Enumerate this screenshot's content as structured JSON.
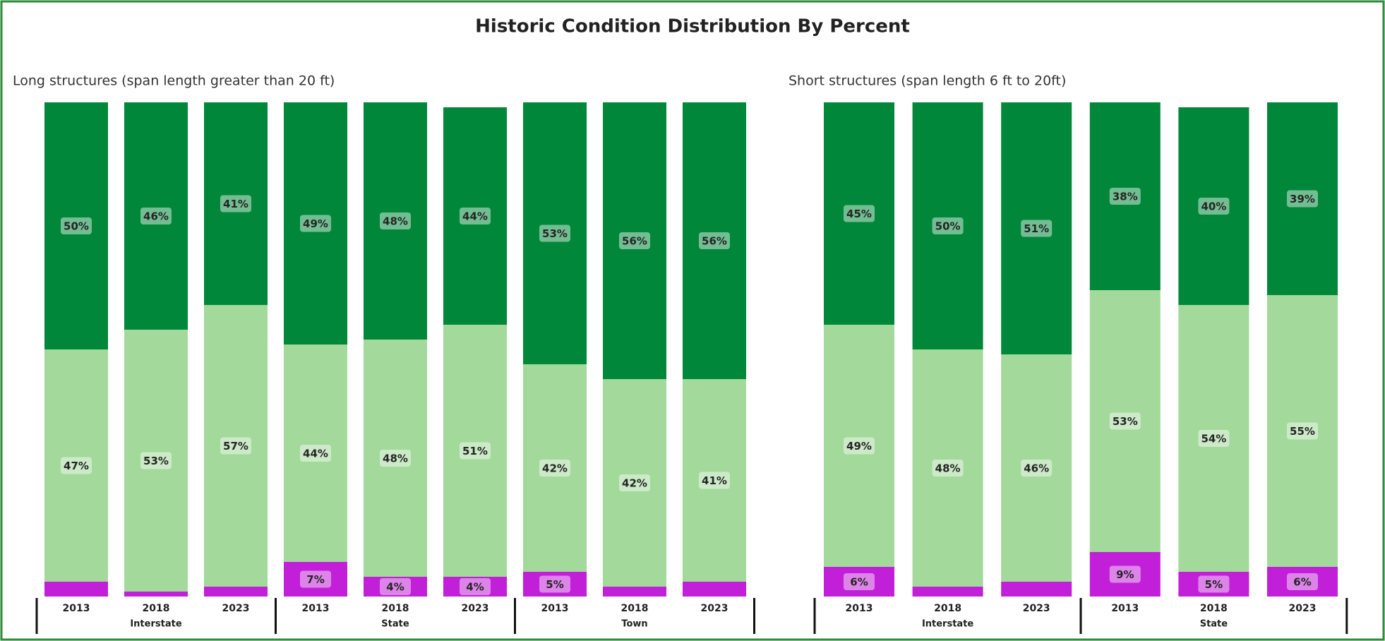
{
  "title": "Historic Condition Distribution By Percent",
  "chart_data": [
    {
      "type": "stacked_bar",
      "subtitle": "Long structures (span length greater than 20 ft)",
      "categories": [
        "2013",
        "2018",
        "2023",
        "2013",
        "2018",
        "2023",
        "2013",
        "2018",
        "2023"
      ],
      "group_labels": [
        "Interstate",
        "State",
        "Town"
      ],
      "ylim": [
        0,
        100
      ],
      "series": [
        {
          "color": "#c21fd8",
          "values": [
            3,
            1,
            2,
            7,
            4,
            4,
            5,
            2,
            3
          ],
          "value_labels": [
            null,
            null,
            null,
            "7%",
            "4%",
            "4%",
            "5%",
            null,
            null
          ]
        },
        {
          "color": "#a3d99b",
          "values": [
            47,
            53,
            57,
            44,
            48,
            51,
            42,
            42,
            41
          ],
          "value_labels": [
            "47%",
            "53%",
            "57%",
            "44%",
            "48%",
            "51%",
            "42%",
            "42%",
            "41%"
          ]
        },
        {
          "color": "#00873a",
          "values": [
            50,
            46,
            41,
            49,
            48,
            44,
            53,
            56,
            56
          ],
          "value_labels": [
            "50%",
            "46%",
            "41%",
            "49%",
            "48%",
            "44%",
            "53%",
            "56%",
            "56%"
          ]
        }
      ]
    },
    {
      "type": "stacked_bar",
      "subtitle": "Short structures (span length 6 ft to 20ft)",
      "categories": [
        "2013",
        "2018",
        "2023",
        "2013",
        "2018",
        "2023"
      ],
      "group_labels": [
        "Interstate",
        "State"
      ],
      "ylim": [
        0,
        100
      ],
      "series": [
        {
          "color": "#c21fd8",
          "values": [
            6,
            2,
            3,
            9,
            5,
            6
          ],
          "value_labels": [
            "6%",
            null,
            null,
            "9%",
            "5%",
            "6%"
          ]
        },
        {
          "color": "#a3d99b",
          "values": [
            49,
            48,
            46,
            53,
            54,
            55
          ],
          "value_labels": [
            "49%",
            "48%",
            "46%",
            "53%",
            "54%",
            "55%"
          ]
        },
        {
          "color": "#00873a",
          "values": [
            45,
            50,
            51,
            38,
            40,
            39
          ],
          "value_labels": [
            "45%",
            "50%",
            "51%",
            "38%",
            "40%",
            "39%"
          ]
        }
      ]
    }
  ]
}
